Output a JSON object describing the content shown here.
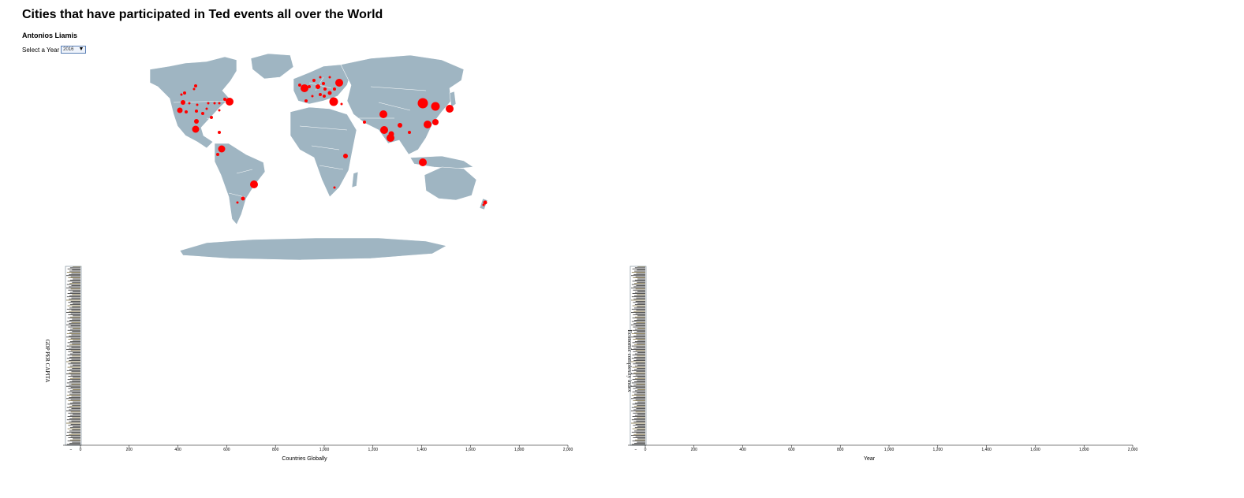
{
  "header": {
    "title": "Cities that have participated in Ted events all over the World",
    "author": "Antonios Liamis",
    "year_prompt": "Select a Year",
    "year_value": "2016"
  },
  "colors": {
    "land": "#9fb5c2",
    "border": "#ffffff",
    "city": "#ff0000",
    "bar": "#2b2b2b",
    "axis": "#000000"
  },
  "chart_data": [
    {
      "type": "bar",
      "title": "",
      "xlabel": "Countries Globally",
      "ylabel": "GDP PER CAPITA",
      "xlim": [
        -60,
        2000
      ],
      "x_ticks": [
        "0",
        "200",
        "400",
        "600",
        "800",
        "1,000",
        "1,200",
        "1,400",
        "1,600",
        "1,800",
        "2,000"
      ],
      "grid": false
    },
    {
      "type": "bar",
      "title": "",
      "xlabel": "Year",
      "ylabel": "Economic complexity index",
      "xlim": [
        -60,
        2000
      ],
      "x_ticks": [
        "0",
        "200",
        "400",
        "600",
        "800",
        "1,000",
        "1,200",
        "1,400",
        "1,600",
        "1,800",
        "2,000"
      ],
      "grid": false
    }
  ]
}
